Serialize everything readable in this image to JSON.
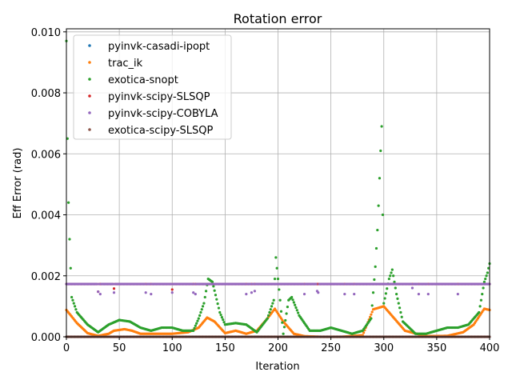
{
  "chart_data": {
    "type": "scatter",
    "title": "Rotation error",
    "xlabel": "Iteration",
    "ylabel": "Eff Error (rad)",
    "xlim": [
      0,
      400
    ],
    "ylim": [
      0,
      0.0101
    ],
    "xticks": [
      0,
      50,
      100,
      150,
      200,
      250,
      300,
      350,
      400
    ],
    "yticks": [
      0.0,
      0.002,
      0.004,
      0.006,
      0.008,
      0.01
    ],
    "ytick_labels": [
      "0.000",
      "0.002",
      "0.004",
      "0.006",
      "0.008",
      "0.010"
    ],
    "grid": true,
    "legend_position": "upper-left",
    "series": [
      {
        "name": "pyinvk-casadi-ipopt",
        "color": "#1f77b4",
        "description_of_values": "effectively 0 for all iterations 0-400",
        "values_constant": 0.0
      },
      {
        "name": "trac_ik",
        "color": "#ff7f0e",
        "key_points": [
          [
            0,
            0.00088
          ],
          [
            10,
            0.00045
          ],
          [
            20,
            0.00012
          ],
          [
            30,
            3e-05
          ],
          [
            40,
            0.0001
          ],
          [
            45,
            0.0002
          ],
          [
            55,
            0.00025
          ],
          [
            62,
            0.0002
          ],
          [
            70,
            0.0001
          ],
          [
            80,
            0.0001
          ],
          [
            100,
            0.0001
          ],
          [
            115,
            0.00015
          ],
          [
            125,
            0.0003
          ],
          [
            133,
            0.00063
          ],
          [
            140,
            0.0005
          ],
          [
            150,
            0.00012
          ],
          [
            160,
            0.0002
          ],
          [
            170,
            0.0001
          ],
          [
            180,
            0.0002
          ],
          [
            190,
            0.0006
          ],
          [
            197,
            0.00092
          ],
          [
            205,
            0.0005
          ],
          [
            215,
            0.0001
          ],
          [
            225,
            2e-05
          ],
          [
            240,
            0.0
          ],
          [
            260,
            0.0
          ],
          [
            280,
            5e-05
          ],
          [
            290,
            0.0009
          ],
          [
            300,
            0.001
          ],
          [
            310,
            0.0006
          ],
          [
            320,
            0.0002
          ],
          [
            340,
            2e-05
          ],
          [
            360,
            3e-05
          ],
          [
            375,
            0.00015
          ],
          [
            385,
            0.0004
          ],
          [
            395,
            0.00092
          ],
          [
            400,
            0.00088
          ]
        ]
      },
      {
        "name": "exotica-snopt",
        "color": "#2ca02c",
        "key_points": [
          [
            0,
            0.0097
          ],
          [
            1,
            0.0065
          ],
          [
            2,
            0.0044
          ],
          [
            3,
            0.0032
          ],
          [
            5,
            0.0013
          ],
          [
            10,
            0.0008
          ],
          [
            20,
            0.0004
          ],
          [
            30,
            0.00015
          ],
          [
            40,
            0.0004
          ],
          [
            50,
            0.00055
          ],
          [
            60,
            0.0005
          ],
          [
            70,
            0.0003
          ],
          [
            80,
            0.0002
          ],
          [
            90,
            0.0003
          ],
          [
            100,
            0.0003
          ],
          [
            110,
            0.0002
          ],
          [
            120,
            0.0002
          ],
          [
            125,
            0.0006
          ],
          [
            130,
            0.0011
          ],
          [
            134,
            0.0019
          ],
          [
            138,
            0.0018
          ],
          [
            145,
            0.0008
          ],
          [
            150,
            0.0004
          ],
          [
            160,
            0.00045
          ],
          [
            170,
            0.0004
          ],
          [
            180,
            0.00015
          ],
          [
            190,
            0.0006
          ],
          [
            196,
            0.0012
          ],
          [
            198,
            0.0026
          ],
          [
            202,
            0.0012
          ],
          [
            205,
            0.0001
          ],
          [
            210,
            0.0012
          ],
          [
            213,
            0.0013
          ],
          [
            220,
            0.0007
          ],
          [
            230,
            0.0002
          ],
          [
            240,
            0.0002
          ],
          [
            250,
            0.0003
          ],
          [
            260,
            0.0002
          ],
          [
            270,
            0.0001
          ],
          [
            280,
            0.0002
          ],
          [
            288,
            0.0006
          ],
          [
            292,
            0.0023
          ],
          [
            294,
            0.0035
          ],
          [
            295,
            0.0043
          ],
          [
            296,
            0.0052
          ],
          [
            297,
            0.0061
          ],
          [
            298,
            0.0069
          ],
          [
            300,
            0.0011
          ],
          [
            305,
            0.0019
          ],
          [
            308,
            0.0022
          ],
          [
            312,
            0.0014
          ],
          [
            318,
            0.0005
          ],
          [
            330,
            0.0001
          ],
          [
            340,
            0.0001
          ],
          [
            350,
            0.0002
          ],
          [
            360,
            0.0003
          ],
          [
            370,
            0.0003
          ],
          [
            380,
            0.0004
          ],
          [
            390,
            0.0008
          ],
          [
            395,
            0.0018
          ],
          [
            398,
            0.0021
          ],
          [
            400,
            0.0024
          ]
        ]
      },
      {
        "name": "pyinvk-scipy-SLSQP",
        "color": "#d62728",
        "baseline": 0.00173,
        "dips": [
          [
            30,
            0.00148
          ],
          [
            45,
            0.00158
          ],
          [
            100,
            0.00155
          ]
        ]
      },
      {
        "name": "pyinvk-scipy-COBYLA",
        "color": "#9467bd",
        "baseline": 0.00173,
        "dips": [
          [
            30,
            0.00148
          ],
          [
            32,
            0.0014
          ],
          [
            45,
            0.00145
          ],
          [
            75,
            0.00145
          ],
          [
            80,
            0.0014
          ],
          [
            100,
            0.00145
          ],
          [
            120,
            0.00145
          ],
          [
            122,
            0.0014
          ],
          [
            170,
            0.0014
          ],
          [
            175,
            0.00145
          ],
          [
            178,
            0.0015
          ],
          [
            225,
            0.0014
          ],
          [
            237,
            0.0015
          ],
          [
            238,
            0.00145
          ],
          [
            263,
            0.0014
          ],
          [
            272,
            0.0014
          ],
          [
            327,
            0.0016
          ],
          [
            333,
            0.0014
          ],
          [
            342,
            0.0014
          ],
          [
            370,
            0.0014
          ]
        ]
      },
      {
        "name": "exotica-scipy-SLSQP",
        "color": "#8c564b",
        "description_of_values": "effectively 0 for all iterations 0-400",
        "values_constant": 0.0
      }
    ]
  }
}
